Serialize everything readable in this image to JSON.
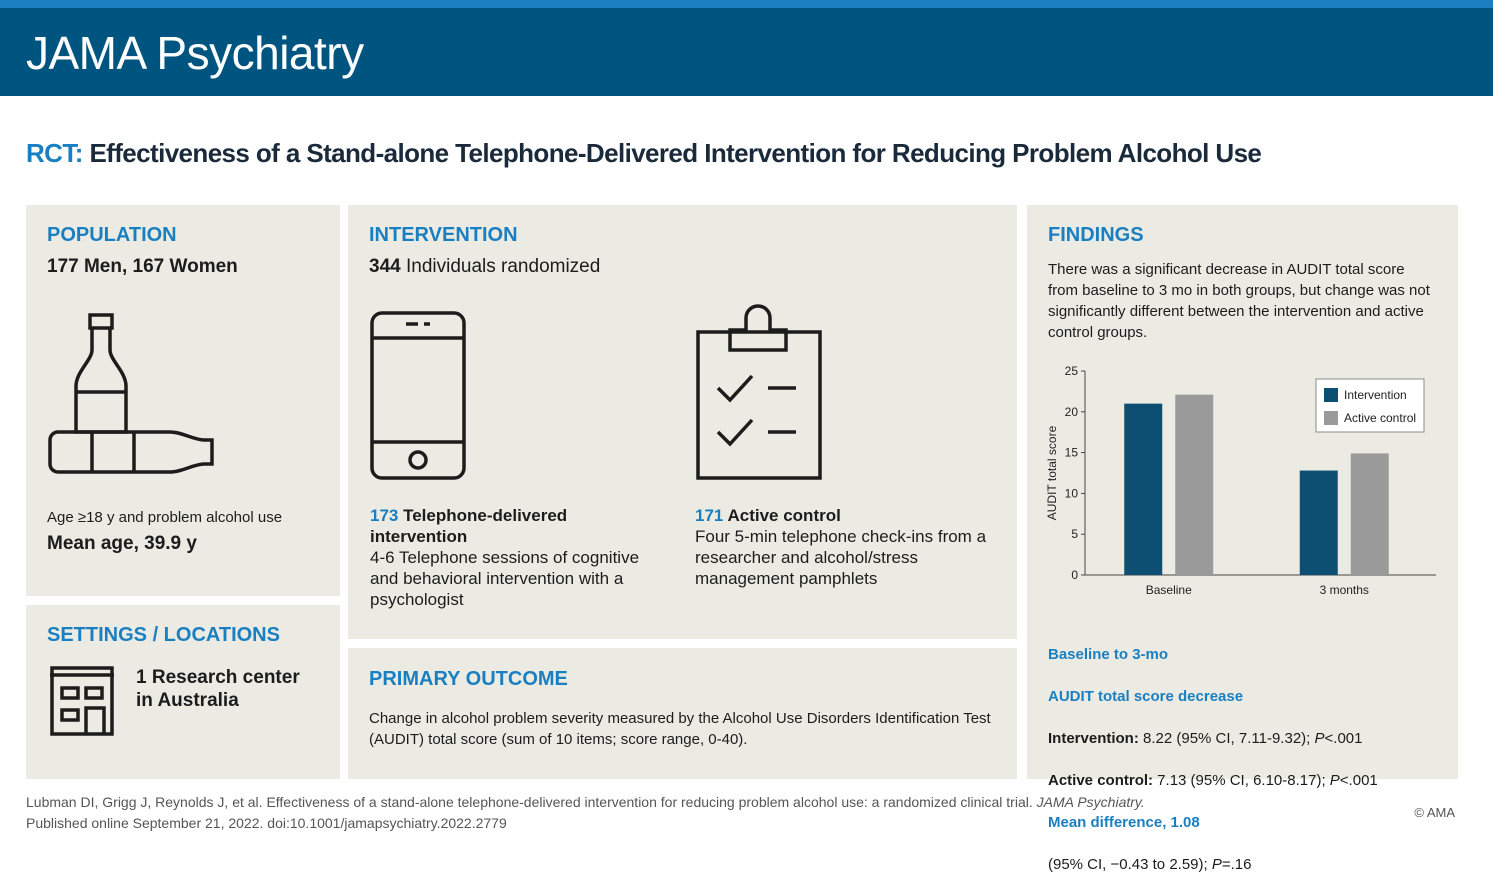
{
  "header": {
    "title": "JAMA Psychiatry"
  },
  "heading": {
    "prefix": "RCT:",
    "title": "Effectiveness of a Stand-alone Telephone-Delivered Intervention for Reducing Problem Alcohol Use"
  },
  "population": {
    "title": "POPULATION",
    "subtitle": "177 Men, 167 Women",
    "note": "Age ≥18 y and problem alcohol use",
    "mean": "Mean age, 39.9 y"
  },
  "settings": {
    "title": "SETTINGS / LOCATIONS",
    "lines": [
      "1 Research center",
      "in Australia"
    ]
  },
  "intervention": {
    "title": "INTERVENTION",
    "count": "344",
    "count_text": " Individuals randomized",
    "arms": [
      {
        "n": "173",
        "label": " Telephone-delivered intervention",
        "description": "4-6 Telephone sessions of cognitive and behavioral intervention with a psychologist"
      },
      {
        "n": "171",
        "label": " Active control",
        "description": "Four 5-min telephone check-ins from a researcher and alcohol/stress management pamphlets"
      }
    ]
  },
  "outcome": {
    "title": "PRIMARY OUTCOME",
    "text": "Change in alcohol problem severity measured by the Alcohol Use Disorders Identification Test (AUDIT) total score (sum of 10 items; score range, 0-40)."
  },
  "findings": {
    "title": "FINDINGS",
    "text": "There was a significant decrease in AUDIT total score from baseline to 3 mo in both groups, but change was not significantly different between the intervention and active control groups.",
    "summary": {
      "heading1": "Baseline to 3-mo",
      "heading2": "AUDIT total score decrease",
      "rows": [
        {
          "label": "Intervention:",
          "text": " 8.22 (95% CI, 7.11-9.32); ",
          "p": "P",
          "pval": "<.001"
        },
        {
          "label": "Active control:",
          "text": " 7.13 (95% CI, 6.10-8.17); ",
          "p": "P",
          "pval": "<.001"
        }
      ],
      "difference": "Mean difference, 1.08",
      "difference_ci": "(95% CI, −0.43 to 2.59); ",
      "difference_p": "P",
      "difference_pval": "=.16"
    }
  },
  "chart_data": {
    "type": "bar",
    "ylabel": "AUDIT total score",
    "categories": [
      "Baseline",
      "3 months"
    ],
    "series": [
      {
        "name": "Intervention",
        "color": "#0d4f72",
        "values": [
          21.0,
          12.8
        ]
      },
      {
        "name": "Active control",
        "color": "#9a9a9a",
        "values": [
          22.1,
          14.9
        ]
      }
    ],
    "ylim": [
      0,
      25
    ],
    "yticks": [
      0,
      5,
      10,
      15,
      20,
      25
    ],
    "legend": "upper right"
  },
  "footer": {
    "citation": "Lubman DI, Grigg J, Reynolds J, et al. Effectiveness of a stand-alone telephone-delivered intervention for reducing problem alcohol use: a randomized clinical trial. ",
    "journal": "JAMA Psychiatry.",
    "published": "Published online September 21, 2022. doi:10.1001/jamapsychiatry.2022.2779",
    "copyright": "© AMA"
  }
}
